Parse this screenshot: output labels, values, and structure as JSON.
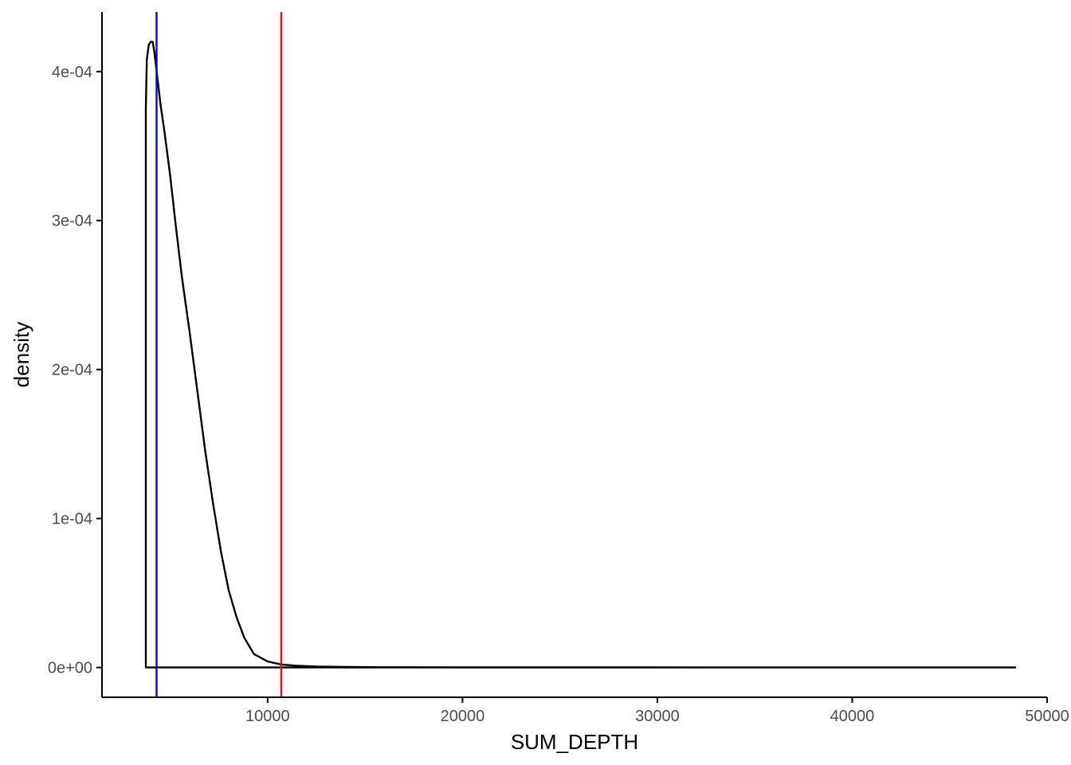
{
  "chart_data": {
    "type": "line",
    "title": "",
    "xlabel": "SUM_DEPTH",
    "ylabel": "density",
    "xlim": [
      1500,
      50000
    ],
    "ylim": [
      -2e-05,
      0.00044
    ],
    "x_ticks": [
      10000,
      20000,
      30000,
      40000,
      50000
    ],
    "x_tick_labels": [
      "10000",
      "20000",
      "30000",
      "40000",
      "50000"
    ],
    "y_ticks": [
      0,
      0.0001,
      0.0002,
      0.0003,
      0.0004
    ],
    "y_tick_labels": [
      "0e+00",
      "1e-04",
      "2e-04",
      "3e-04",
      "4e-04"
    ],
    "grid": false,
    "series": [
      {
        "color": "#000000",
        "x": [
          3750,
          3750,
          3800,
          3900,
          4000,
          4100,
          4200,
          4350,
          4500,
          4700,
          5000,
          5300,
          5600,
          6000,
          6400,
          6800,
          7200,
          7600,
          8000,
          8400,
          8800,
          9300,
          10000,
          10700,
          11500,
          12500,
          14000,
          16000,
          20000,
          30000,
          40000,
          47300,
          3750,
          48400
        ],
        "y": [
          0,
          0.000375,
          0.000408,
          0.000418,
          0.00042,
          0.00042,
          0.000412,
          0.000395,
          0.000378,
          0.00036,
          0.00033,
          0.000295,
          0.000262,
          0.000225,
          0.000185,
          0.000145,
          0.00011,
          7.8e-05,
          5.2e-05,
          3.4e-05,
          2e-05,
          9e-06,
          4e-06,
          2e-06,
          1.2e-06,
          6e-07,
          3e-07,
          1.5e-07,
          8e-08,
          4e-08,
          2e-08,
          0,
          0,
          0
        ]
      }
    ],
    "vlines": [
      {
        "x": 4300,
        "color": "#0000ff"
      },
      {
        "x": 10700,
        "color": "#ff0000"
      }
    ]
  }
}
